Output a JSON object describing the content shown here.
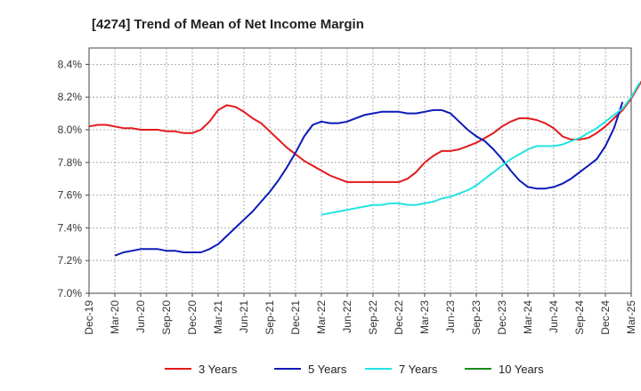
{
  "chart_data": {
    "type": "line",
    "title": "[4274]  Trend of Mean of Net Income Margin",
    "xlabel": "",
    "ylabel": "",
    "x_ticks": [
      "Dec-19",
      "Mar-20",
      "Jun-20",
      "Sep-20",
      "Dec-20",
      "Mar-21",
      "Jun-21",
      "Sep-21",
      "Dec-21",
      "Mar-22",
      "Jun-22",
      "Sep-22",
      "Dec-22",
      "Mar-23",
      "Jun-23",
      "Sep-23",
      "Dec-23",
      "Mar-24",
      "Jun-24",
      "Sep-24",
      "Dec-24",
      "Mar-25"
    ],
    "y_ticks": [
      "7.0%",
      "7.2%",
      "7.4%",
      "7.6%",
      "7.8%",
      "8.0%",
      "8.2%",
      "8.4%"
    ],
    "ylim": [
      7.0,
      8.5
    ],
    "grid": true,
    "grid_style": "dashed",
    "legend_position": "bottom",
    "series": [
      {
        "name": "3 Years",
        "color": "#e31a1c",
        "start_index": 0,
        "values": [
          8.02,
          8.03,
          8.03,
          8.02,
          8.01,
          8.01,
          8.0,
          8.0,
          8.0,
          7.99,
          7.99,
          7.98,
          7.98,
          8.0,
          8.05,
          8.12,
          8.15,
          8.14,
          8.11,
          8.07,
          8.04,
          7.99,
          7.94,
          7.89,
          7.85,
          7.81,
          7.78,
          7.75,
          7.72,
          7.7,
          7.68,
          7.68,
          7.68,
          7.68,
          7.68,
          7.68,
          7.68,
          7.7,
          7.74,
          7.8,
          7.84,
          7.87,
          7.87,
          7.88,
          7.9,
          7.92,
          7.95,
          7.98,
          8.02,
          8.05,
          8.07,
          8.07,
          8.06,
          8.04,
          8.01,
          7.96,
          7.94,
          7.94,
          7.95,
          7.98,
          8.02,
          8.07,
          8.12,
          8.19,
          8.28,
          8.36
        ]
      },
      {
        "name": "5 Years",
        "color": "#0a1ab8",
        "start_index": 3,
        "values": [
          7.23,
          7.25,
          7.26,
          7.27,
          7.27,
          7.27,
          7.26,
          7.26,
          7.25,
          7.25,
          7.25,
          7.27,
          7.3,
          7.35,
          7.4,
          7.45,
          7.5,
          7.56,
          7.62,
          7.69,
          7.77,
          7.86,
          7.96,
          8.03,
          8.05,
          8.04,
          8.04,
          8.05,
          8.07,
          8.09,
          8.1,
          8.11,
          8.11,
          8.11,
          8.1,
          8.1,
          8.11,
          8.12,
          8.12,
          8.1,
          8.05,
          8.0,
          7.96,
          7.93,
          7.88,
          7.82,
          7.75,
          7.69,
          7.65,
          7.64,
          7.64,
          7.65,
          7.67,
          7.7,
          7.74,
          7.78,
          7.82,
          7.9,
          8.01,
          8.17
        ]
      },
      {
        "name": "7 Years",
        "color": "#22e3e3",
        "start_index": 27,
        "values": [
          7.48,
          7.49,
          7.5,
          7.51,
          7.52,
          7.53,
          7.54,
          7.54,
          7.55,
          7.55,
          7.54,
          7.54,
          7.55,
          7.56,
          7.58,
          7.59,
          7.61,
          7.63,
          7.66,
          7.7,
          7.74,
          7.78,
          7.82,
          7.85,
          7.88,
          7.9,
          7.9,
          7.9,
          7.91,
          7.93,
          7.95,
          7.98,
          8.01,
          8.05,
          8.09,
          8.13,
          8.2,
          8.29
        ]
      },
      {
        "name": "10 Years",
        "color": "#1a8c1a",
        "start_index": 0,
        "values": []
      }
    ]
  }
}
